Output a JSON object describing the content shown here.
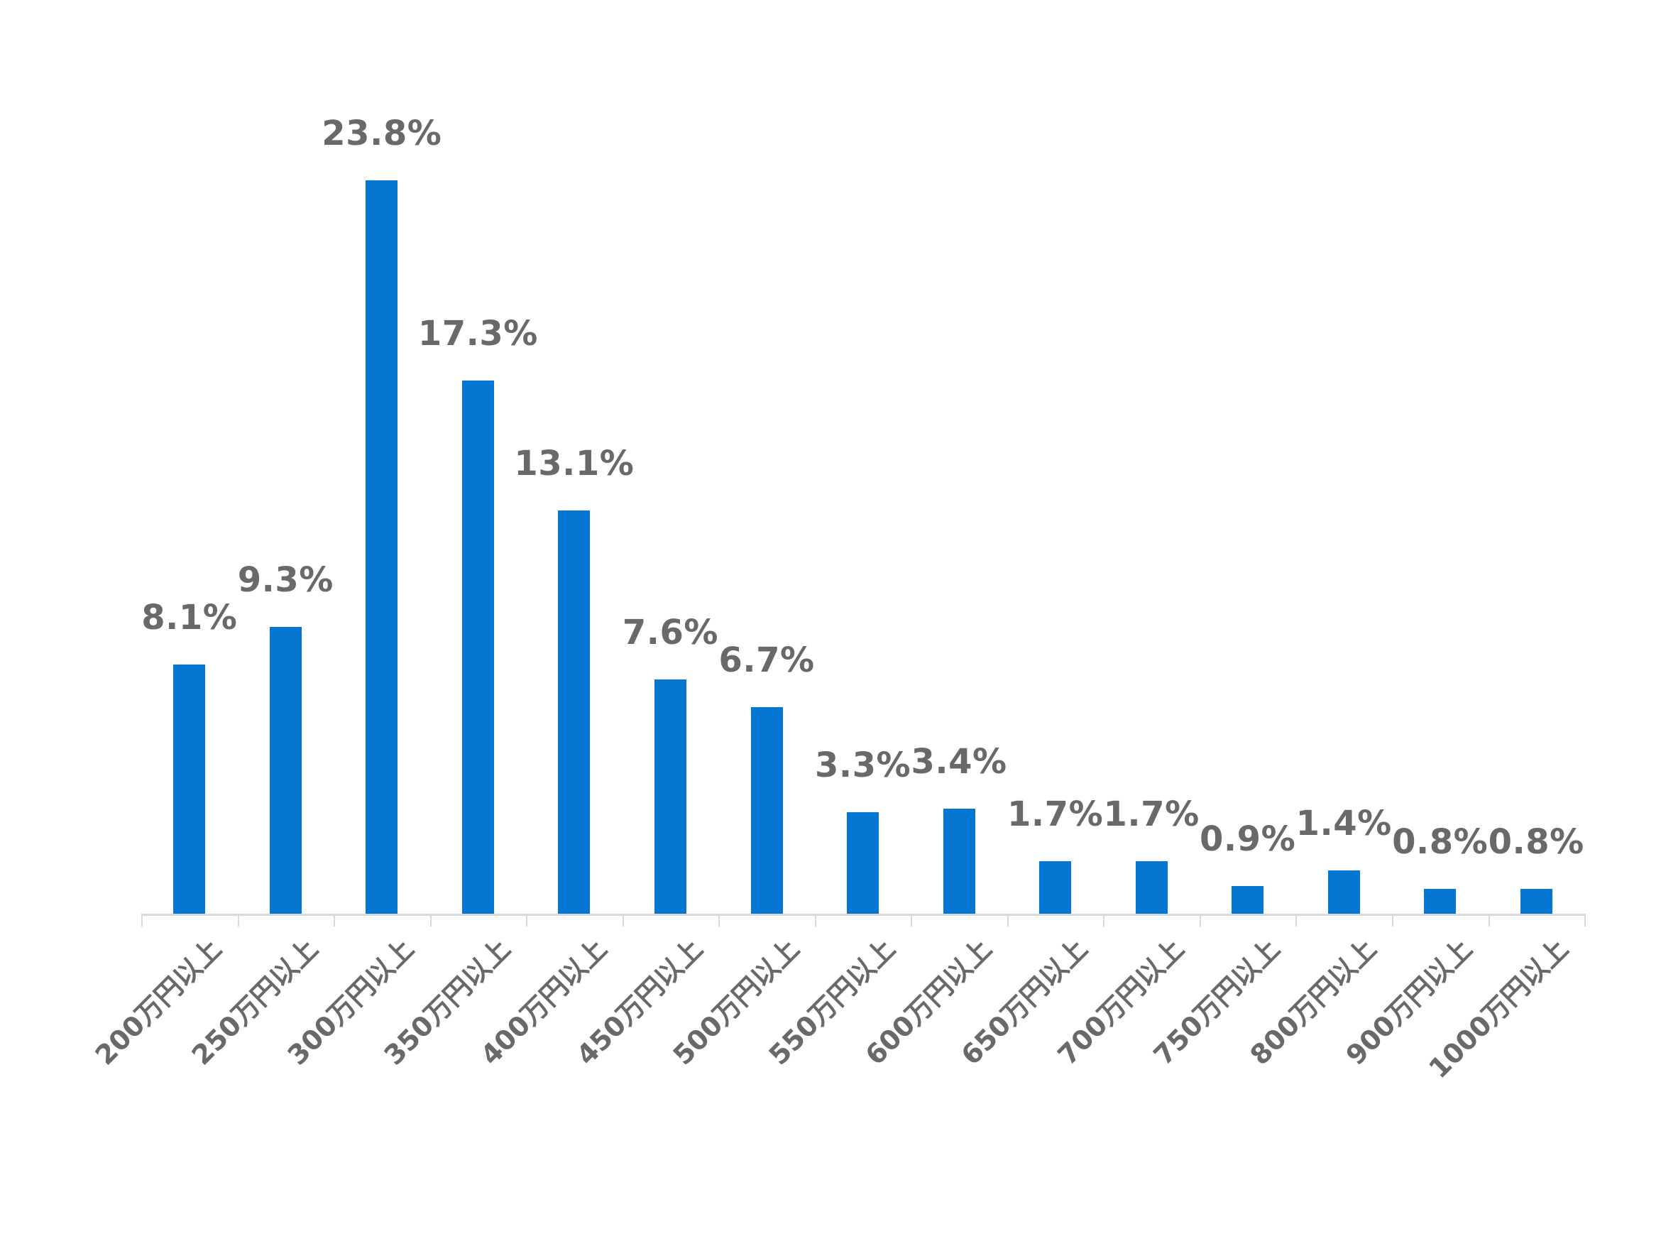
{
  "chart_data": {
    "type": "bar",
    "title": "",
    "xlabel": "",
    "ylabel": "",
    "categories": [
      "200万円以上",
      "250万円以上",
      "300万円以上",
      "350万円以上",
      "400万円以上",
      "450万円以上",
      "500万円以上",
      "550万円以上",
      "600万円以上",
      "650万円以上",
      "700万円以上",
      "750万円以上",
      "800万円以上",
      "900万円以上",
      "1000万円以上"
    ],
    "values": [
      8.1,
      9.3,
      23.8,
      17.3,
      13.1,
      7.6,
      6.7,
      3.3,
      3.4,
      1.7,
      1.7,
      0.9,
      1.4,
      0.8,
      0.8
    ],
    "data_labels": [
      "8.1%",
      "9.3%",
      "23.8%",
      "17.3%",
      "13.1%",
      "7.6%",
      "6.7%",
      "3.3%",
      "3.4%",
      "1.7%",
      "1.7%",
      "0.9%",
      "1.4%",
      "0.8%",
      "0.8%"
    ],
    "ylim": [
      0,
      25
    ],
    "grid": false,
    "legend": false,
    "y_axis_visible": false,
    "x_tick_rotation_deg": -45,
    "colors": {
      "bar": "#0577D2",
      "data_label": "#696969",
      "category_label": "#696969",
      "axis": "#D9D9D9",
      "background": "#FFFFFF"
    }
  }
}
